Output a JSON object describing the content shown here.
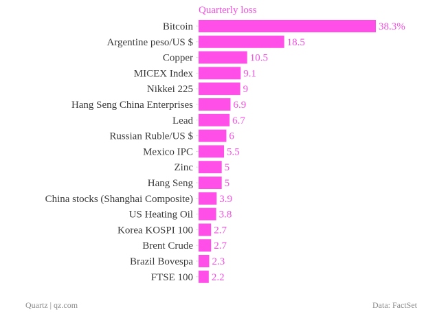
{
  "chart_data": {
    "type": "bar",
    "orientation": "horizontal",
    "title": "Quarterly loss",
    "unit_suffix_first": "%",
    "categories": [
      "Bitcoin",
      "Argentine peso/US $",
      "Copper",
      "MICEX Index",
      "Nikkei 225",
      "Hang Seng China Enterprises",
      "Lead",
      "Russian Ruble/US $",
      "Mexico IPC",
      "Zinc",
      "Hang Seng",
      "China stocks (Shanghai Composite)",
      "US Heating Oil",
      "Korea KOSPI 100",
      "Brent Crude",
      "Brazil Bovespa",
      "FTSE 100"
    ],
    "values": [
      38.3,
      18.5,
      10.5,
      9.1,
      9,
      6.9,
      6.7,
      6,
      5.5,
      5,
      5,
      3.9,
      3.8,
      2.7,
      2.7,
      2.3,
      2.2
    ],
    "value_labels": [
      "38.3%",
      "18.5",
      "10.5",
      "9.1",
      "9",
      "6.9",
      "6.7",
      "6",
      "5.5",
      "5",
      "5",
      "3.9",
      "3.8",
      "2.7",
      "2.7",
      "2.3",
      "2.2"
    ],
    "xlim": [
      0,
      38.3
    ],
    "grid": false,
    "bar_color": "#ff4fe8"
  },
  "footer": {
    "source_left": "Quartz | qz.com",
    "source_right": "Data: FactSet"
  }
}
